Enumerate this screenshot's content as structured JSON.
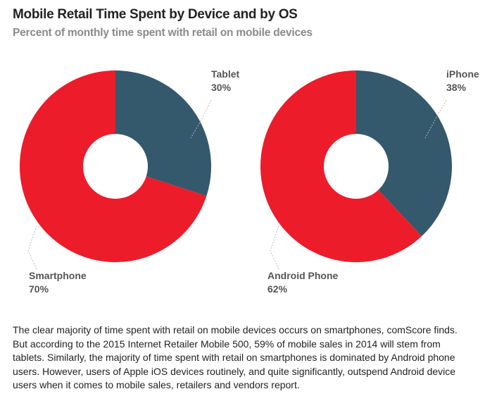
{
  "title": "Mobile Retail Time Spent by Device and by OS",
  "subtitle": "Percent of monthly time spent with retail on mobile devices",
  "colors": {
    "primary": "#ec1c2a",
    "secondary": "#34586c",
    "leader": "#bbbbbb"
  },
  "chart_data": [
    {
      "type": "pie",
      "slices": [
        {
          "name": "Tablet",
          "label": "30%",
          "value": 30,
          "color": "#34586c"
        },
        {
          "name": "Smartphone",
          "label": "70%",
          "value": 70,
          "color": "#ec1c2a"
        }
      ]
    },
    {
      "type": "pie",
      "slices": [
        {
          "name": "iPhone",
          "label": "38%",
          "value": 38,
          "color": "#34586c"
        },
        {
          "name": "Android Phone",
          "label": "62%",
          "value": 62,
          "color": "#ec1c2a"
        }
      ]
    }
  ],
  "note": "The clear majority of time spent with retail on mobile devices occurs on smartphones, comScore finds. But according to the 2015 Internet Retailer Mobile 500, 59% of mobile sales in 2014 will stem from tablets. Similarly, the majority of time spent with retail on smartphones is dominated by Android phone users. However, users of Apple iOS devices routinely, and quite significantly, outspend Android device users when it comes to mobile sales, retailers and vendors report."
}
